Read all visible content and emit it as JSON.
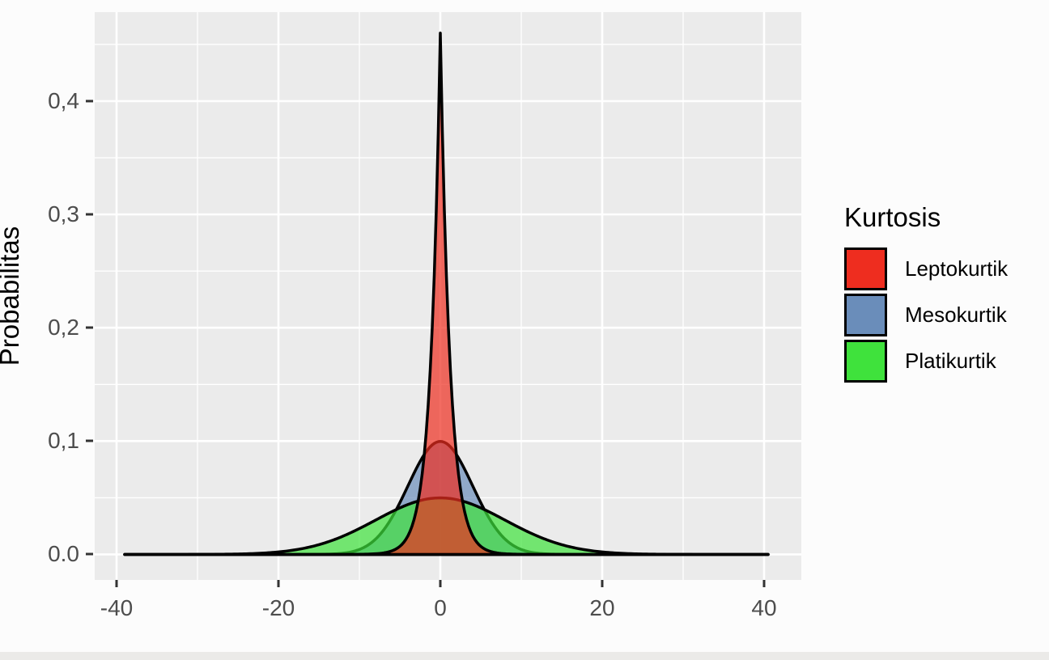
{
  "figure": {
    "background": "#FCFCFC",
    "panel_background": "#EBEBEB",
    "grid_color": "#FFFFFF",
    "tick_color": "#333333",
    "tick_label_color": "#4D4D4D"
  },
  "chart_data": {
    "type": "area",
    "subtype": "density-curves",
    "title": "",
    "xlabel": "",
    "ylabel": "Probabilitas",
    "xlim": [
      -42.7,
      44.6
    ],
    "ylim": [
      -0.0225,
      0.4785
    ],
    "x_ticks": [
      {
        "value": -40,
        "label": "-40"
      },
      {
        "value": -20,
        "label": "-20"
      },
      {
        "value": 0,
        "label": "0"
      },
      {
        "value": 20,
        "label": "20"
      },
      {
        "value": 40,
        "label": "40"
      }
    ],
    "y_ticks": [
      {
        "value": 0.0,
        "label": "0.0"
      },
      {
        "value": 0.1,
        "label": "0,1"
      },
      {
        "value": 0.2,
        "label": "0,2"
      },
      {
        "value": 0.3,
        "label": "0,3"
      },
      {
        "value": 0.4,
        "label": "0,4"
      }
    ],
    "x_minor_gridlines": [
      -30,
      -10,
      10,
      30
    ],
    "y_minor_gridlines": [
      0.05,
      0.15,
      0.25,
      0.35,
      0.45
    ],
    "grid_on": true,
    "baseline_range": [
      -39,
      40.5
    ],
    "fill_opacity": 0.7,
    "stroke_color": "#000000",
    "stroke_width": 3.5,
    "legend": {
      "title": "Kurtosis",
      "position": "right",
      "entries": [
        {
          "label": "Leptokurtik",
          "color": "#EE2D1F"
        },
        {
          "label": "Mesokurtik",
          "color": "#6A8DBA"
        },
        {
          "label": "Platikurtik",
          "color": "#3FE23C"
        }
      ]
    },
    "series": [
      {
        "name": "Mesokurtik",
        "color": "#6A8DBA",
        "curve": "normal",
        "mean": 0,
        "sd": 4,
        "peak": 0.0997,
        "samples": {
          "x": [
            -20,
            -15,
            -10,
            -5,
            0,
            5,
            10,
            15,
            20
          ],
          "y": [
            0,
            0.0001,
            0.0044,
            0.0457,
            0.0997,
            0.0457,
            0.0044,
            0.0001,
            0
          ]
        }
      },
      {
        "name": "Platikurtik",
        "color": "#3FE23C",
        "curve": "normal",
        "mean": 0,
        "sd": 8,
        "peak": 0.0499,
        "samples": {
          "x": [
            -30,
            -25,
            -20,
            -15,
            -10,
            -5,
            0,
            5,
            10,
            15,
            20,
            25,
            30
          ],
          "y": [
            0,
            0.0004,
            0.0022,
            0.0086,
            0.0229,
            0.0411,
            0.0499,
            0.0411,
            0.0229,
            0.0086,
            0.0022,
            0.0004,
            0
          ]
        }
      },
      {
        "name": "Leptokurtik",
        "color": "#EE2D1F",
        "curve": "laplace",
        "mean": 0,
        "b": 1.2,
        "peak": 0.46,
        "samples": {
          "x": [
            -10,
            -5,
            -3,
            -2,
            -1,
            0,
            1,
            2,
            3,
            5,
            10
          ],
          "y": [
            0.0002,
            0.0071,
            0.0377,
            0.0869,
            0.2,
            0.46,
            0.2,
            0.0869,
            0.0377,
            0.0071,
            0.0002
          ]
        }
      }
    ]
  }
}
